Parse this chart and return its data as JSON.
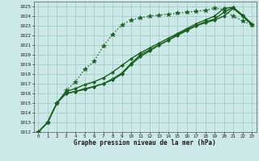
{
  "title": "Graphe pression niveau de la mer (hPa)",
  "background_color": "#cce8e8",
  "grid_color": "#99ccbb",
  "line_color": "#1a6020",
  "xlim": [
    -0.5,
    23.5
  ],
  "ylim": [
    1012,
    1025.5
  ],
  "xticks": [
    0,
    1,
    2,
    3,
    4,
    5,
    6,
    7,
    8,
    9,
    10,
    11,
    12,
    13,
    14,
    15,
    16,
    17,
    18,
    19,
    20,
    21,
    22,
    23
  ],
  "yticks": [
    1012,
    1013,
    1014,
    1015,
    1016,
    1017,
    1018,
    1019,
    1020,
    1021,
    1022,
    1023,
    1024,
    1025
  ],
  "series": [
    {
      "x": [
        0,
        1,
        2,
        3,
        4,
        5,
        6,
        7,
        8,
        9,
        10,
        11,
        12,
        13,
        14,
        15,
        16,
        17,
        18,
        19,
        20,
        21,
        22,
        23
      ],
      "y": [
        1012.0,
        1013.0,
        1015.0,
        1016.3,
        1017.2,
        1018.5,
        1019.3,
        1020.9,
        1022.1,
        1023.1,
        1023.6,
        1023.8,
        1024.0,
        1024.1,
        1024.2,
        1024.3,
        1024.4,
        1024.5,
        1024.6,
        1024.8,
        1024.7,
        1024.0,
        1023.5,
        1023.1
      ],
      "style": "dotted",
      "marker": "*",
      "ms": 4,
      "lw": 1.0
    },
    {
      "x": [
        0,
        1,
        2,
        3,
        4,
        5,
        6,
        7,
        8,
        9,
        10,
        11,
        12,
        13,
        14,
        15,
        16,
        17,
        18,
        19,
        20,
        21,
        22,
        23
      ],
      "y": [
        1012.0,
        1013.0,
        1015.0,
        1016.0,
        1016.2,
        1016.4,
        1016.7,
        1017.0,
        1017.4,
        1018.0,
        1019.0,
        1019.8,
        1020.4,
        1021.0,
        1021.5,
        1022.0,
        1022.5,
        1023.0,
        1023.3,
        1023.6,
        1024.0,
        1024.8,
        1024.0,
        1023.1
      ],
      "style": "solid",
      "marker": "D",
      "ms": 2,
      "lw": 1.0
    },
    {
      "x": [
        0,
        1,
        2,
        3,
        4,
        5,
        6,
        7,
        8,
        9,
        10,
        11,
        12,
        13,
        14,
        15,
        16,
        17,
        18,
        19,
        20,
        21,
        22,
        23
      ],
      "y": [
        1012.0,
        1013.0,
        1015.0,
        1016.0,
        1016.2,
        1016.5,
        1016.7,
        1017.0,
        1017.5,
        1018.1,
        1019.1,
        1020.0,
        1020.5,
        1021.0,
        1021.5,
        1022.1,
        1022.6,
        1023.0,
        1023.4,
        1023.7,
        1024.4,
        1024.9,
        1024.1,
        1023.2
      ],
      "style": "solid",
      "marker": "D",
      "ms": 2,
      "lw": 1.0
    },
    {
      "x": [
        0,
        1,
        2,
        3,
        4,
        5,
        6,
        7,
        8,
        9,
        10,
        11,
        12,
        13,
        14,
        15,
        16,
        17,
        18,
        19,
        20,
        21,
        22,
        23
      ],
      "y": [
        1012.0,
        1013.0,
        1015.0,
        1016.2,
        1016.5,
        1016.9,
        1017.2,
        1017.6,
        1018.2,
        1018.9,
        1019.6,
        1020.2,
        1020.7,
        1021.2,
        1021.7,
        1022.2,
        1022.7,
        1023.2,
        1023.6,
        1024.0,
        1024.8,
        1024.9,
        1024.1,
        1023.2
      ],
      "style": "solid",
      "marker": "D",
      "ms": 2,
      "lw": 1.0
    }
  ]
}
